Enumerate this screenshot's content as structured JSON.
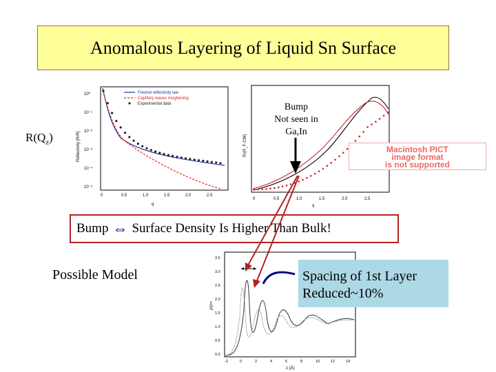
{
  "slide": {
    "title": "Anomalous Layering of Liquid Sn Surface",
    "rq_label": "R(Q",
    "rq_sub": "z",
    "rq_close": ")",
    "bump_note": [
      "Bump",
      "Not seen in",
      "Ga,In"
    ],
    "density_left": "Bump",
    "density_right": "Surface Density Is Higher Than Bulk!",
    "possible_model": "Possible Model",
    "spacing_text": [
      "Spacing of 1st Layer",
      "Reduced~10%"
    ],
    "pict_placeholder": [
      "Macintosh PICT",
      "image format",
      "is not supported"
    ],
    "colors": {
      "title_bg": "#ffff99",
      "box_border": "#b22222",
      "spacing_bg": "#add8e6",
      "arrow": "#00008b"
    }
  },
  "plot1": {
    "legend": [
      "Fresnel reflectivity law",
      "Capillary waves roughening",
      "Experimental data"
    ],
    "ylabel": "Reflectivity [R/R]",
    "xlabel": "q",
    "yticks": [
      "10⁰",
      "10⁻¹",
      "10⁻²",
      "10⁻³",
      "10⁻⁴",
      "10⁻⁵"
    ],
    "xticks": [
      "0",
      "0.5",
      "1.0",
      "1.5",
      "2.0",
      "2.5"
    ]
  },
  "plot2": {
    "ylabel": "R/(R_F·CW)",
    "xlabel": "q",
    "xticks": [
      "0",
      "0.5",
      "1.0",
      "1.5",
      "2.0",
      "2.5"
    ]
  },
  "plot3": {
    "ylabel": "ρ/ρ∞",
    "xlabel": "z (Å)",
    "yticks": [
      "3.5",
      "3.0",
      "2.5",
      "2.0",
      "1.5",
      "1.0",
      "0.5",
      "0.0"
    ],
    "xticks": [
      "-2",
      "0",
      "2",
      "4",
      "6",
      "8",
      "10",
      "12",
      "14"
    ]
  }
}
